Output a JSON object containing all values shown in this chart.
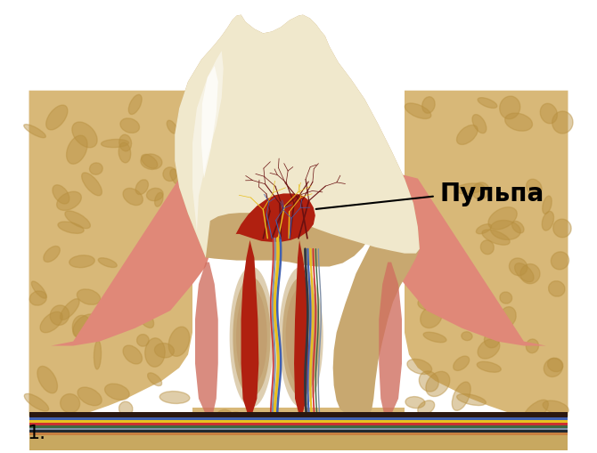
{
  "background_color": "#ffffff",
  "label_text": "Пульпа",
  "label_fontsize": 20,
  "label_fontweight": "bold",
  "number_text": "1.",
  "number_fontsize": 16,
  "colors": {
    "enamel_white": "#f8f4e8",
    "enamel_cream": "#f0e8cc",
    "dentin_outer": "#c8a870",
    "dentin_mid": "#b89458",
    "dentin_inner": "#c8b080",
    "pulp_red": "#b02010",
    "pulp_bright": "#cc3020",
    "gum_pink": "#e08878",
    "gum_light": "#e8a090",
    "bone_tan": "#d8b878",
    "bone_light": "#e8cc94",
    "bone_dark": "#b89040",
    "periodontal_pink": "#d07060",
    "nerve_yellow": "#e8c020",
    "nerve_blue": "#4060b0",
    "nerve_gray": "#8090a8",
    "nerve_red": "#cc3030",
    "nerve_green": "#406840",
    "nerve_dark": "#303840",
    "bottom_dark": "#2a1810",
    "bottom_bone": "#c8a860"
  }
}
